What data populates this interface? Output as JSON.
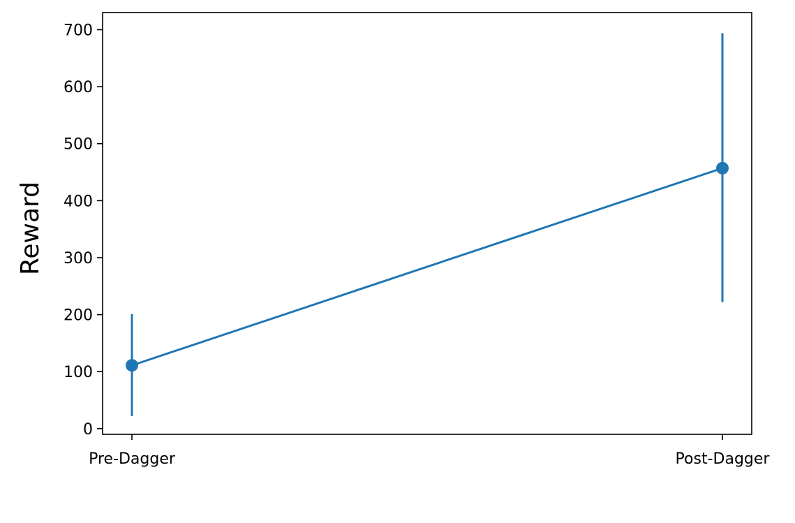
{
  "chart_data": {
    "type": "line",
    "title": "",
    "xlabel": "",
    "ylabel": "Reward",
    "categories": [
      "Pre-Dagger",
      "Post-Dagger"
    ],
    "series": [
      {
        "values": [
          111,
          457
        ],
        "error_low": [
          22,
          222
        ],
        "error_high": [
          201,
          694
        ],
        "color": "#1f77b4",
        "markers": true,
        "errorbars": true
      }
    ],
    "ylim": [
      -10,
      730
    ],
    "yticks": [
      0,
      100,
      200,
      300,
      400,
      500,
      600,
      700
    ],
    "grid": false,
    "legend": false
  }
}
